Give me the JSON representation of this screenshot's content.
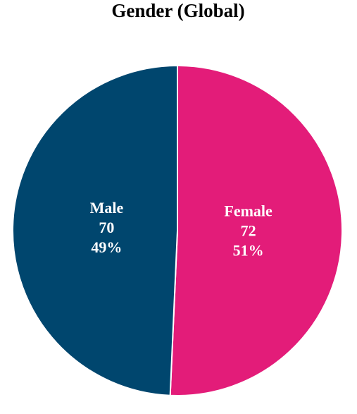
{
  "chart_data": {
    "type": "pie",
    "title": "Gender (Global)",
    "categories": [
      "Female",
      "Male"
    ],
    "values": [
      72,
      70
    ],
    "share_labels": [
      "51%",
      "49%"
    ],
    "colors": [
      "#e31c79",
      "#00466e"
    ]
  }
}
